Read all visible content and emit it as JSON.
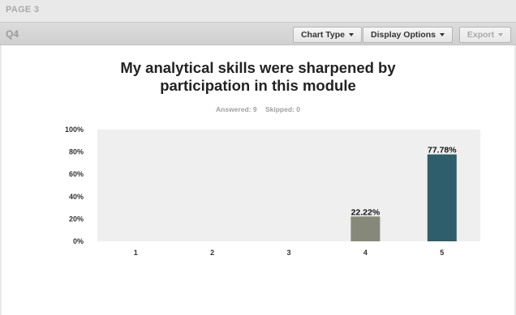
{
  "page": {
    "label": "PAGE 3"
  },
  "question": {
    "number": "Q4"
  },
  "toolbar": {
    "chart_type_label": "Chart Type",
    "display_options_label": "Display Options",
    "export_label": "Export"
  },
  "summary": {
    "answered_label": "Answered:",
    "answered": "9",
    "skipped_label": "Skipped:",
    "skipped": "0"
  },
  "colors": {
    "bar_4": "#86887a",
    "bar_5": "#2e5d6b",
    "plot_bg": "#efefef"
  },
  "chart_data": {
    "type": "bar",
    "title": "My analytical skills were sharpened by participation in this module",
    "title_lines": [
      "My analytical skills were sharpened by",
      "participation in this module"
    ],
    "categories": [
      "1",
      "2",
      "3",
      "4",
      "5"
    ],
    "values": [
      0,
      0,
      0,
      22.22,
      77.78
    ],
    "value_labels": [
      "",
      "",
      "",
      "22.22%",
      "77.78%"
    ],
    "ylim": [
      0,
      100
    ],
    "yticks": [
      "0%",
      "20%",
      "40%",
      "60%",
      "80%",
      "100%"
    ],
    "grid": false,
    "legend": "none"
  }
}
